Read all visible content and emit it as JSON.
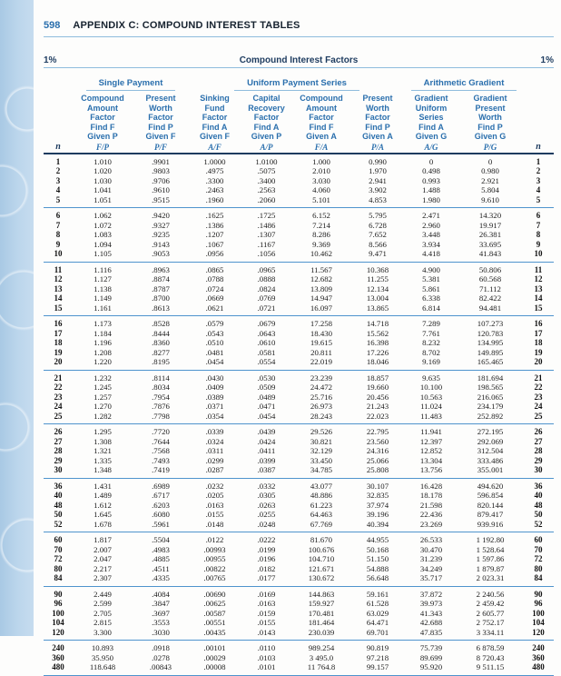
{
  "page": {
    "number": "598",
    "title": "APPENDIX C: COMPOUND INTEREST TABLES"
  },
  "table": {
    "rate_left": "1%",
    "rate_right": "1%",
    "title": "Compound Interest Factors",
    "n_label": "n",
    "groups": [
      {
        "label": "Single Payment"
      },
      {
        "label": "Uniform Payment Series"
      },
      {
        "label": "Arithmetic Gradient"
      }
    ],
    "columns": [
      {
        "lines": "Compound\nAmount\nFactor\nFind F\nGiven P",
        "symbol": "F/P"
      },
      {
        "lines": "Present\nWorth\nFactor\nFind P\nGiven F",
        "symbol": "P/F"
      },
      {
        "lines": "Sinking\nFund\nFactor\nFind A\nGiven F",
        "symbol": "A/F"
      },
      {
        "lines": "Capital\nRecovery\nFactor\nFind A\nGiven P",
        "symbol": "A/P"
      },
      {
        "lines": "Compound\nAmount\nFactor\nFind F\nGiven A",
        "symbol": "F/A"
      },
      {
        "lines": "Present\nWorth\nFactor\nFind P\nGiven A",
        "symbol": "P/A"
      },
      {
        "lines": "Gradient\nUniform\nSeries\nFind A\nGiven G",
        "symbol": "A/G"
      },
      {
        "lines": "Gradient\nPresent\nWorth\nFind P\nGiven G",
        "symbol": "P/G"
      }
    ],
    "blocks": [
      [
        [
          "1",
          "1.010",
          ".9901",
          "1.0000",
          "1.0100",
          "1.000",
          "0.990",
          "0",
          "0"
        ],
        [
          "2",
          "1.020",
          ".9803",
          ".4975",
          ".5075",
          "2.010",
          "1.970",
          "0.498",
          "0.980"
        ],
        [
          "3",
          "1.030",
          ".9706",
          ".3300",
          ".3400",
          "3.030",
          "2.941",
          "0.993",
          "2.921"
        ],
        [
          "4",
          "1.041",
          ".9610",
          ".2463",
          ".2563",
          "4.060",
          "3.902",
          "1.488",
          "5.804"
        ],
        [
          "5",
          "1.051",
          ".9515",
          ".1960",
          ".2060",
          "5.101",
          "4.853",
          "1.980",
          "9.610"
        ]
      ],
      [
        [
          "6",
          "1.062",
          ".9420",
          ".1625",
          ".1725",
          "6.152",
          "5.795",
          "2.471",
          "14.320"
        ],
        [
          "7",
          "1.072",
          ".9327",
          ".1386",
          ".1486",
          "7.214",
          "6.728",
          "2.960",
          "19.917"
        ],
        [
          "8",
          "1.083",
          ".9235",
          ".1207",
          ".1307",
          "8.286",
          "7.652",
          "3.448",
          "26.381"
        ],
        [
          "9",
          "1.094",
          ".9143",
          ".1067",
          ".1167",
          "9.369",
          "8.566",
          "3.934",
          "33.695"
        ],
        [
          "10",
          "1.105",
          ".9053",
          ".0956",
          ".1056",
          "10.462",
          "9.471",
          "4.418",
          "41.843"
        ]
      ],
      [
        [
          "11",
          "1.116",
          ".8963",
          ".0865",
          ".0965",
          "11.567",
          "10.368",
          "4.900",
          "50.806"
        ],
        [
          "12",
          "1.127",
          ".8874",
          ".0788",
          ".0888",
          "12.682",
          "11.255",
          "5.381",
          "60.568"
        ],
        [
          "13",
          "1.138",
          ".8787",
          ".0724",
          ".0824",
          "13.809",
          "12.134",
          "5.861",
          "71.112"
        ],
        [
          "14",
          "1.149",
          ".8700",
          ".0669",
          ".0769",
          "14.947",
          "13.004",
          "6.338",
          "82.422"
        ],
        [
          "15",
          "1.161",
          ".8613",
          ".0621",
          ".0721",
          "16.097",
          "13.865",
          "6.814",
          "94.481"
        ]
      ],
      [
        [
          "16",
          "1.173",
          ".8528",
          ".0579",
          ".0679",
          "17.258",
          "14.718",
          "7.289",
          "107.273"
        ],
        [
          "17",
          "1.184",
          ".8444",
          ".0543",
          ".0643",
          "18.430",
          "15.562",
          "7.761",
          "120.783"
        ],
        [
          "18",
          "1.196",
          ".8360",
          ".0510",
          ".0610",
          "19.615",
          "16.398",
          "8.232",
          "134.995"
        ],
        [
          "19",
          "1.208",
          ".8277",
          ".0481",
          ".0581",
          "20.811",
          "17.226",
          "8.702",
          "149.895"
        ],
        [
          "20",
          "1.220",
          ".8195",
          ".0454",
          ".0554",
          "22.019",
          "18.046",
          "9.169",
          "165.465"
        ]
      ],
      [
        [
          "21",
          "1.232",
          ".8114",
          ".0430",
          ".0530",
          "23.239",
          "18.857",
          "9.635",
          "181.694"
        ],
        [
          "22",
          "1.245",
          ".8034",
          ".0409",
          ".0509",
          "24.472",
          "19.660",
          "10.100",
          "198.565"
        ],
        [
          "23",
          "1.257",
          ".7954",
          ".0389",
          ".0489",
          "25.716",
          "20.456",
          "10.563",
          "216.065"
        ],
        [
          "24",
          "1.270",
          ".7876",
          ".0371",
          ".0471",
          "26.973",
          "21.243",
          "11.024",
          "234.179"
        ],
        [
          "25",
          "1.282",
          ".7798",
          ".0354",
          ".0454",
          "28.243",
          "22.023",
          "11.483",
          "252.892"
        ]
      ],
      [
        [
          "26",
          "1.295",
          ".7720",
          ".0339",
          ".0439",
          "29.526",
          "22.795",
          "11.941",
          "272.195"
        ],
        [
          "27",
          "1.308",
          ".7644",
          ".0324",
          ".0424",
          "30.821",
          "23.560",
          "12.397",
          "292.069"
        ],
        [
          "28",
          "1.321",
          ".7568",
          ".0311",
          ".0411",
          "32.129",
          "24.316",
          "12.852",
          "312.504"
        ],
        [
          "29",
          "1.335",
          ".7493",
          ".0299",
          ".0399",
          "33.450",
          "25.066",
          "13.304",
          "333.486"
        ],
        [
          "30",
          "1.348",
          ".7419",
          ".0287",
          ".0387",
          "34.785",
          "25.808",
          "13.756",
          "355.001"
        ]
      ],
      [
        [
          "36",
          "1.431",
          ".6989",
          ".0232",
          ".0332",
          "43.077",
          "30.107",
          "16.428",
          "494.620"
        ],
        [
          "40",
          "1.489",
          ".6717",
          ".0205",
          ".0305",
          "48.886",
          "32.835",
          "18.178",
          "596.854"
        ],
        [
          "48",
          "1.612",
          ".6203",
          ".0163",
          ".0263",
          "61.223",
          "37.974",
          "21.598",
          "820.144"
        ],
        [
          "50",
          "1.645",
          ".6080",
          ".0155",
          ".0255",
          "64.463",
          "39.196",
          "22.436",
          "879.417"
        ],
        [
          "52",
          "1.678",
          ".5961",
          ".0148",
          ".0248",
          "67.769",
          "40.394",
          "23.269",
          "939.916"
        ]
      ],
      [
        [
          "60",
          "1.817",
          ".5504",
          ".0122",
          ".0222",
          "81.670",
          "44.955",
          "26.533",
          "1 192.80"
        ],
        [
          "70",
          "2.007",
          ".4983",
          ".00993",
          ".0199",
          "100.676",
          "50.168",
          "30.470",
          "1 528.64"
        ],
        [
          "72",
          "2.047",
          ".4885",
          ".00955",
          ".0196",
          "104.710",
          "51.150",
          "31.239",
          "1 597.86"
        ],
        [
          "80",
          "2.217",
          ".4511",
          ".00822",
          ".0182",
          "121.671",
          "54.888",
          "34.249",
          "1 879.87"
        ],
        [
          "84",
          "2.307",
          ".4335",
          ".00765",
          ".0177",
          "130.672",
          "56.648",
          "35.717",
          "2 023.31"
        ]
      ],
      [
        [
          "90",
          "2.449",
          ".4084",
          ".00690",
          ".0169",
          "144.863",
          "59.161",
          "37.872",
          "2 240.56"
        ],
        [
          "96",
          "2.599",
          ".3847",
          ".00625",
          ".0163",
          "159.927",
          "61.528",
          "39.973",
          "2 459.42"
        ],
        [
          "100",
          "2.705",
          ".3697",
          ".00587",
          ".0159",
          "170.481",
          "63.029",
          "41.343",
          "2 605.77"
        ],
        [
          "104",
          "2.815",
          ".3553",
          ".00551",
          ".0155",
          "181.464",
          "64.471",
          "42.688",
          "2 752.17"
        ],
        [
          "120",
          "3.300",
          ".3030",
          ".00435",
          ".0143",
          "230.039",
          "69.701",
          "47.835",
          "3 334.11"
        ]
      ],
      [
        [
          "240",
          "10.893",
          ".0918",
          ".00101",
          ".0110",
          "989.254",
          "90.819",
          "75.739",
          "6 878.59"
        ],
        [
          "360",
          "35.950",
          ".0278",
          ".00029",
          ".0103",
          "3 495.0",
          "97.218",
          "89.699",
          "8 720.43"
        ],
        [
          "480",
          "118.648",
          ".00843",
          ".00008",
          ".0101",
          "11 764.8",
          "99.157",
          "95.920",
          "9 511.15"
        ]
      ]
    ]
  }
}
